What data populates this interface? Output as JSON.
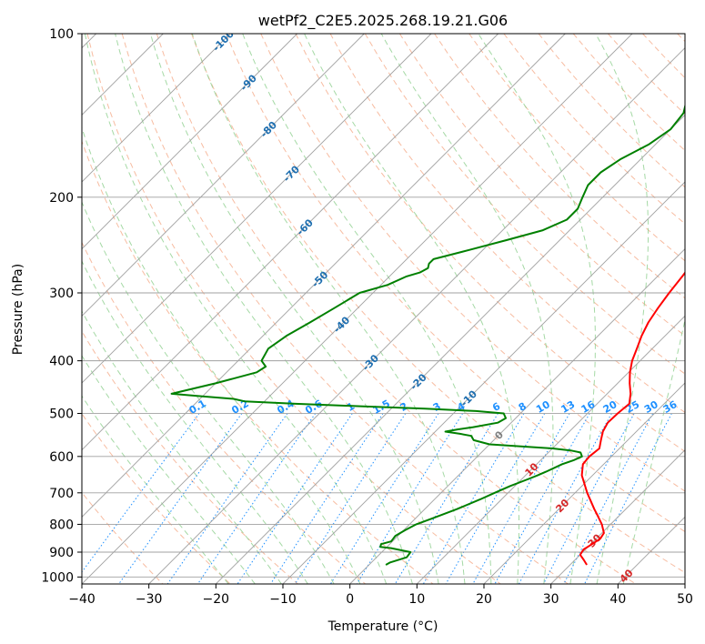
{
  "chart_data": {
    "type": "line",
    "diagram": "skew-T log-P",
    "title": "wetPf2_C2E5.2025.268.19.21.G06",
    "xlabel": "Temperature (°C)",
    "ylabel": "Pressure (hPa)",
    "xlim": [
      -40,
      50
    ],
    "ylim": [
      1030,
      100
    ],
    "x_ticks": [
      -40,
      -30,
      -20,
      -10,
      0,
      10,
      20,
      30,
      40,
      50
    ],
    "y_ticks": [
      100,
      200,
      300,
      400,
      500,
      600,
      700,
      800,
      900,
      1000
    ],
    "colors": {
      "temperature": "#ff0000",
      "dewpoint": "#008000",
      "isotherm_grid": "#a0a0a0",
      "dry_adiabat": "#f4a582",
      "moist_adiabat": "#8fcf8f",
      "mixing_ratio": "#1e90ff",
      "isotherm_label": "#1f6fb0",
      "pos_iso_label": "#d62728",
      "zero_label": "#808080"
    },
    "series": [
      {
        "name": "Temperature",
        "pressure": [
          950,
          930,
          910,
          890,
          870,
          850,
          830,
          800,
          770,
          750,
          700,
          650,
          620,
          600,
          580,
          560,
          540,
          520,
          500,
          480,
          460,
          440,
          420,
          400,
          380,
          360,
          340,
          320,
          300,
          280,
          260,
          240,
          220,
          200,
          185,
          170,
          160,
          150,
          145,
          140,
          130,
          120,
          110,
          103,
          100
        ],
        "temperature": [
          32.5,
          31.3,
          30.0,
          29.7,
          30.2,
          30.6,
          30.3,
          28.7,
          26.7,
          25.3,
          21.8,
          18.4,
          16.9,
          16.7,
          17.0,
          16.0,
          15.0,
          14.4,
          14.5,
          14.8,
          13.5,
          11.8,
          10.2,
          8.8,
          7.7,
          6.5,
          5.5,
          4.8,
          4.2,
          3.7,
          3.1,
          2.3,
          1.5,
          1.0,
          0.6,
          0.5,
          0.8,
          1.4,
          2.5,
          3.8,
          6.0,
          7.7,
          8.3,
          9.1,
          10.3
        ]
      },
      {
        "name": "Dewpoint",
        "pressure": [
          950,
          940,
          920,
          900,
          885,
          880,
          870,
          860,
          850,
          840,
          820,
          800,
          780,
          750,
          720,
          700,
          680,
          660,
          650,
          640,
          620,
          610,
          600,
          590,
          585,
          580,
          575,
          570,
          560,
          550,
          545,
          540,
          535,
          530,
          520,
          510,
          500,
          495,
          490,
          485,
          480,
          475,
          470,
          465,
          460,
          440,
          420,
          410,
          400,
          380,
          360,
          340,
          320,
          300,
          290,
          280,
          275,
          270,
          265,
          260,
          250,
          240,
          230,
          220,
          210,
          200,
          190,
          180,
          170,
          160,
          150,
          140,
          130,
          125,
          120,
          110,
          105,
          100
        ],
        "dewpoint": [
          2.5,
          2.8,
          4.5,
          4.3,
          0.8,
          -1.0,
          -1.3,
          -0.2,
          -0.3,
          -0.4,
          0.2,
          1.0,
          2.5,
          4.8,
          6.8,
          8.0,
          9.3,
          11.0,
          11.8,
          12.5,
          13.8,
          14.9,
          15.6,
          14.8,
          13.0,
          10.0,
          5.0,
          0.0,
          -3.0,
          -4.0,
          -6.0,
          -8.5,
          -7.0,
          -5.0,
          -2.0,
          -1.5,
          -2.5,
          -7.0,
          -15.0,
          -25.0,
          -35.0,
          -43.0,
          -45.0,
          -50.0,
          -55.0,
          -50.0,
          -45.5,
          -45.0,
          -46.5,
          -47.3,
          -46.5,
          -45.0,
          -43.5,
          -42.0,
          -39.0,
          -37.5,
          -36.0,
          -35.5,
          -36.0,
          -36.0,
          -32.0,
          -28.0,
          -24.0,
          -22.0,
          -22.0,
          -23.0,
          -24.0,
          -24.0,
          -23.0,
          -21.0,
          -20.0,
          -20.5,
          -22.5,
          -22.8,
          -22.3,
          -20.0,
          -18.5,
          -17.5
        ]
      }
    ],
    "isotherm_labels": [
      "-100",
      "-90",
      "-80",
      "-70",
      "-60",
      "-50",
      "-40",
      "-30",
      "-20",
      "-10",
      "0",
      "10",
      "20",
      "30",
      "40"
    ],
    "mixing_ratio_labels": [
      "0.1",
      "0.2",
      "0.4",
      "0.6",
      "1",
      "1.5",
      "2",
      "3",
      "4",
      "6",
      "8",
      "10",
      "13",
      "16",
      "20",
      "25",
      "30",
      "36"
    ],
    "mixing_ratio_values": [
      0.1,
      0.2,
      0.4,
      0.6,
      1,
      1.5,
      2,
      3,
      4,
      6,
      8,
      10,
      13,
      16,
      20,
      25,
      30,
      36
    ]
  }
}
